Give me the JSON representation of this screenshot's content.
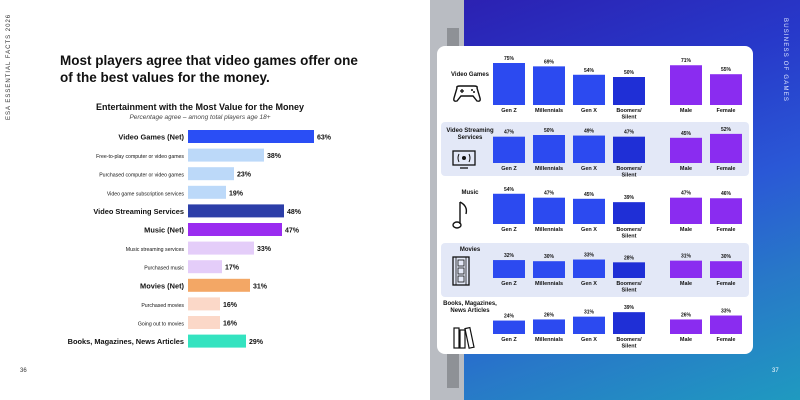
{
  "side_labels": {
    "left": "ESA ESSENTIAL FACTS 2026",
    "right": "BUSINESS OF GAMES"
  },
  "page_numbers": {
    "left": "36",
    "right": "37"
  },
  "headline": "Most players agree that video games offer one of the best values for the money.",
  "icons": [
    "gamepad-icon",
    "tv-icon",
    "music-note-icon",
    "film-strip-icon",
    "books-icon"
  ],
  "chart_data": [
    {
      "type": "bar",
      "orientation": "horizontal",
      "title": "Entertainment with the Most Value for the Money",
      "subtitle": "Percentage agree – among total players age 18+",
      "categories": [
        "Video Games (Net)",
        "Free-to-play computer or video games",
        "Purchased computer or video games",
        "Video game subscription services",
        "Video Streaming Services",
        "Music (Net)",
        "Music streaming services",
        "Purchased music",
        "Movies (Net)",
        "Purchased movies",
        "Going out to movies",
        "Books, Magazines, News Articles"
      ],
      "values": [
        63,
        38,
        23,
        19,
        48,
        47,
        33,
        17,
        31,
        16,
        16,
        29
      ],
      "value_labels": [
        "63%",
        "38%",
        "23%",
        "19%",
        "48%",
        "47%",
        "33%",
        "17%",
        "31%",
        "16%",
        "16%",
        "29%"
      ],
      "is_net": [
        true,
        false,
        false,
        false,
        true,
        true,
        false,
        false,
        true,
        false,
        false,
        true
      ],
      "colors": [
        "#2a4ef5",
        "#bcd9f9",
        "#bcd9f9",
        "#bcd9f9",
        "#2c3ea8",
        "#9a2cf0",
        "#e4cdf9",
        "#e4cdf9",
        "#f3a765",
        "#fbd8c8",
        "#fbd8c8",
        "#34e3c0"
      ]
    },
    {
      "type": "bar",
      "categories": [
        "Gen Z",
        "Millennials",
        "Gen X",
        "Boomers/ Silent",
        "Male",
        "Female"
      ],
      "panels": [
        {
          "label": "Video Games",
          "values": [
            75,
            69,
            54,
            50,
            71,
            55
          ]
        },
        {
          "label": "Video Streaming Services",
          "values": [
            47,
            50,
            49,
            47,
            45,
            52
          ]
        },
        {
          "label": "Music",
          "values": [
            54,
            47,
            45,
            39,
            47,
            46
          ]
        },
        {
          "label": "Movies",
          "values": [
            32,
            30,
            33,
            28,
            31,
            30
          ]
        },
        {
          "label": "Books, Magazines, News Articles",
          "values": [
            24,
            26,
            31,
            39,
            26,
            33
          ]
        }
      ],
      "colors": {
        "generation": "#2c4af0",
        "boomers": "#1f2fd6",
        "gender": "#8a2cf0"
      }
    }
  ]
}
